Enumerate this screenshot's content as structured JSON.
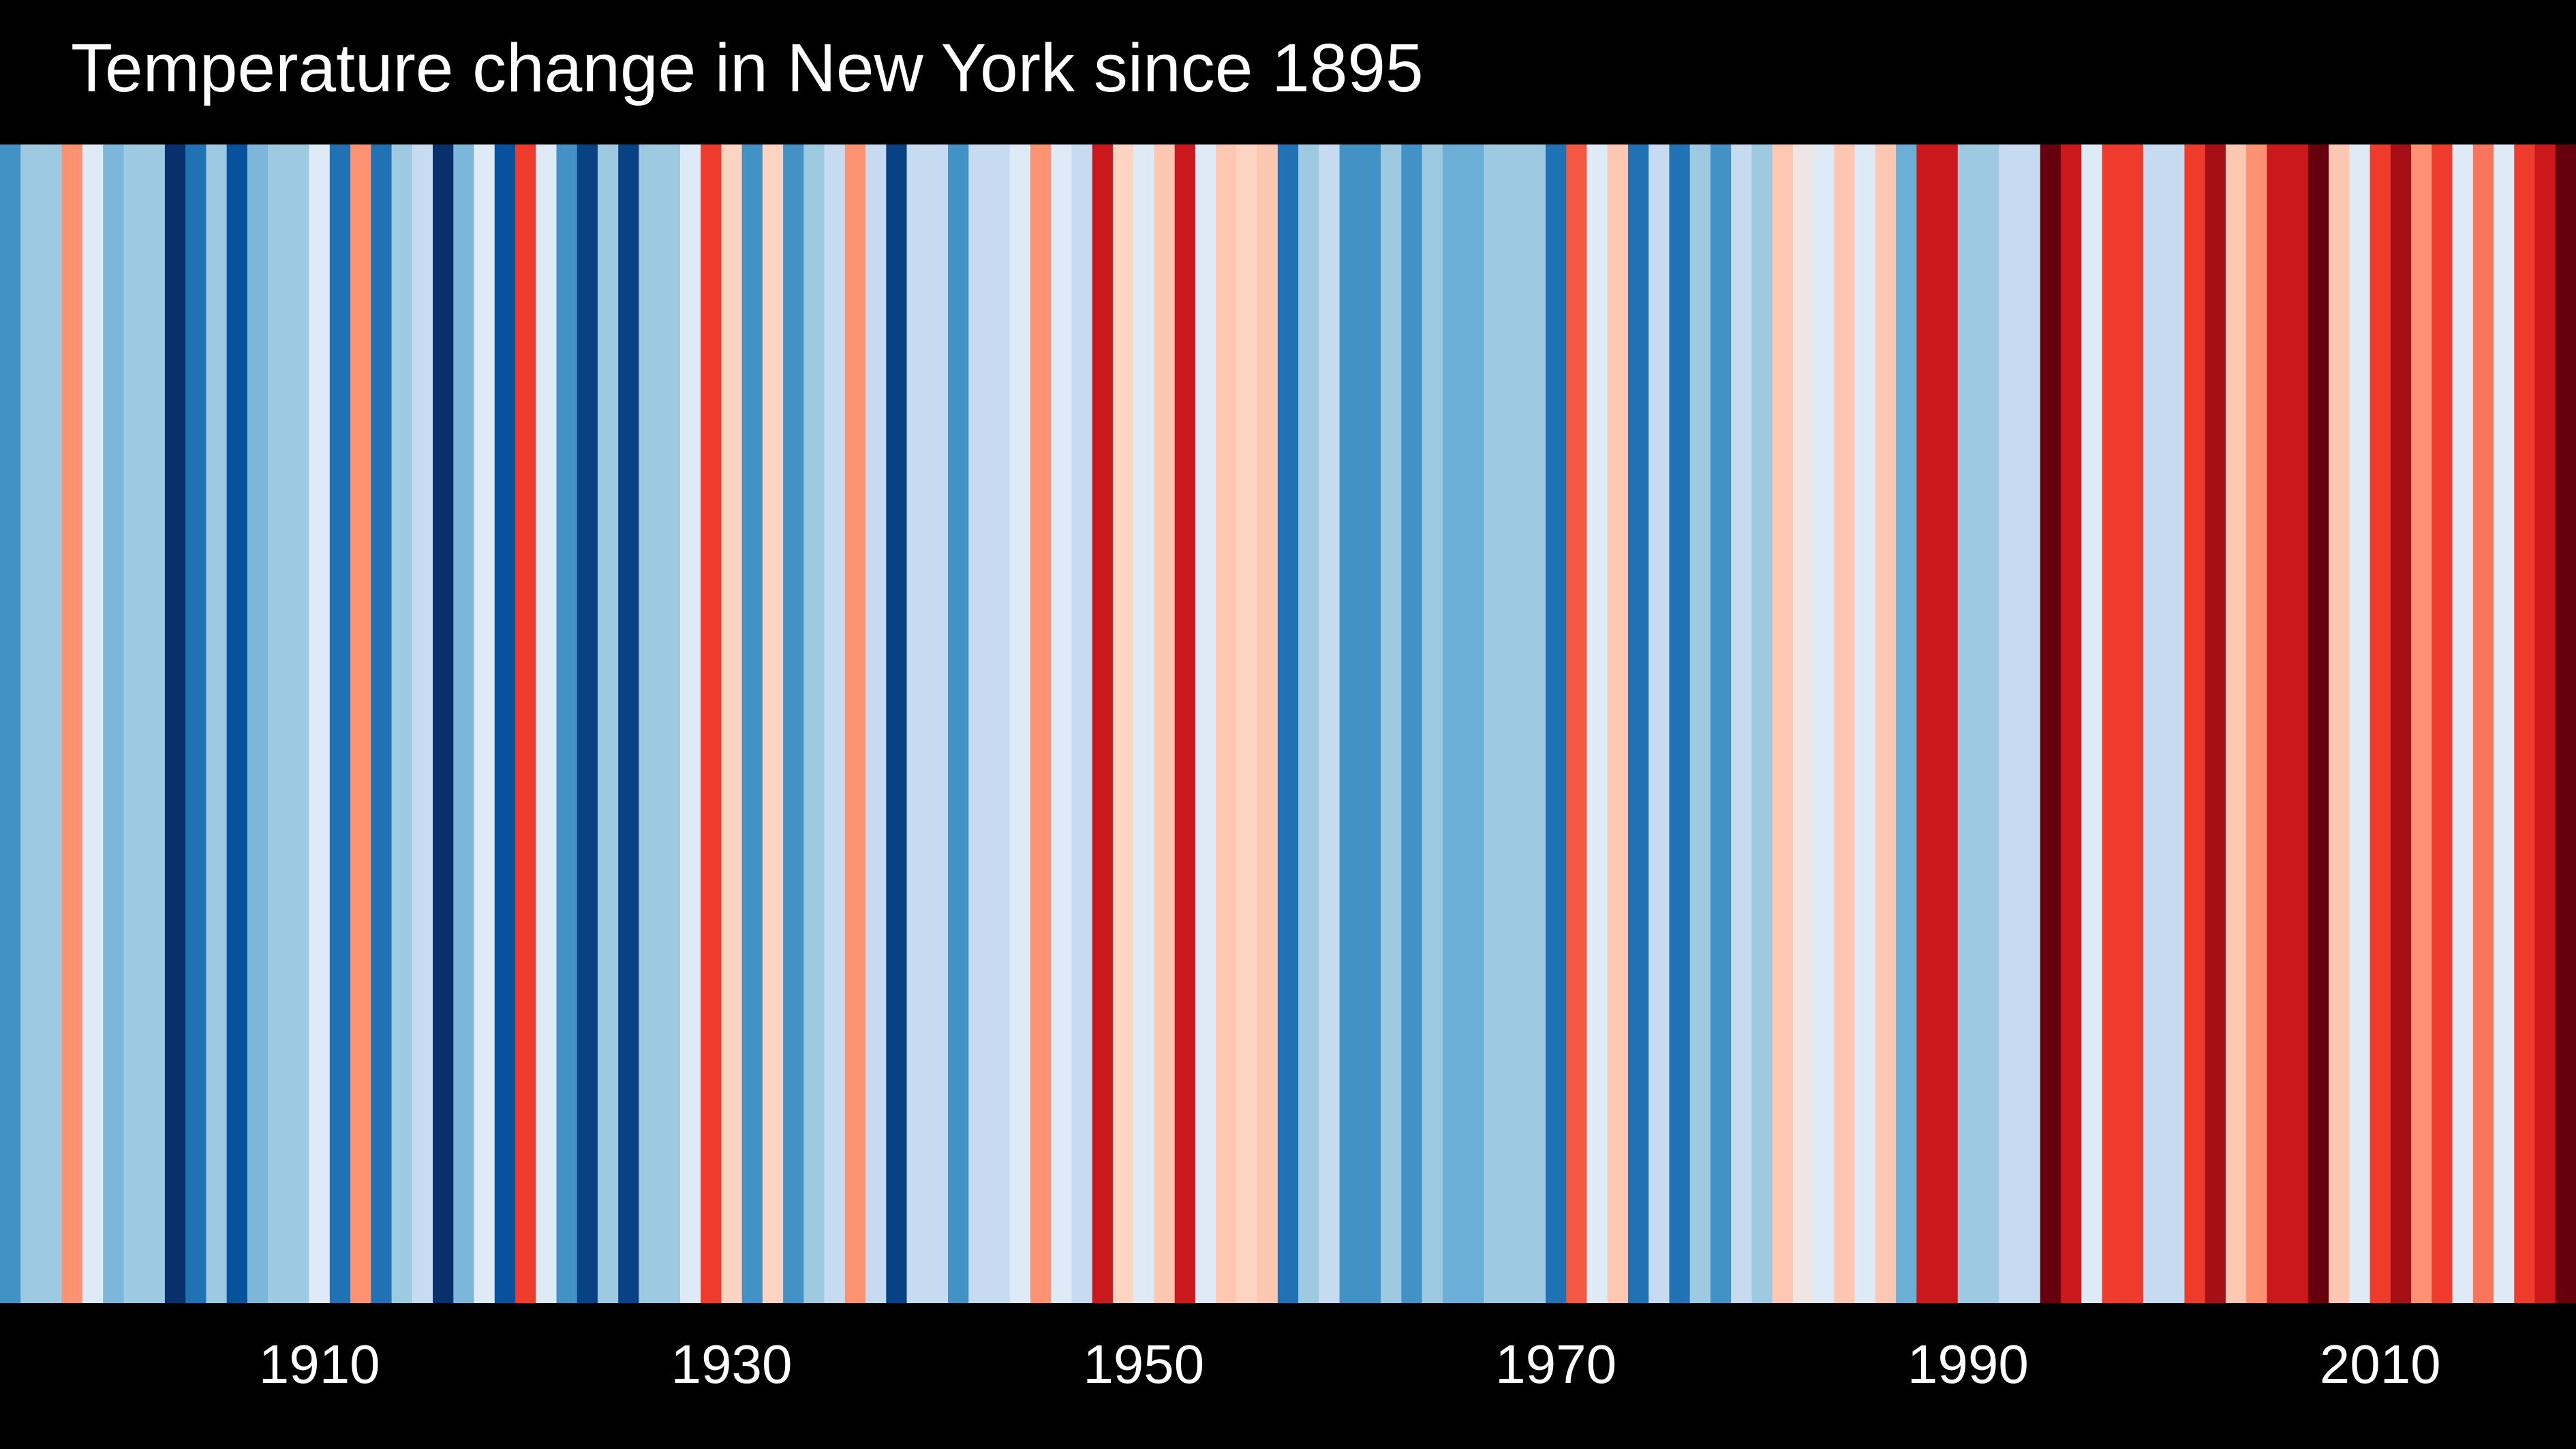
{
  "chart_data": {
    "type": "heatmap",
    "title": "Temperature change in New York since 1895",
    "x_start": 1895,
    "x_end": 2019,
    "x_tick_labels": [
      "1910",
      "1930",
      "1950",
      "1970",
      "1990",
      "2010"
    ],
    "x_ticks": [
      1910,
      1930,
      1950,
      1970,
      1990,
      2010
    ],
    "value_scale": "anomaly level (-1 = coldest blue, 0 = neutral, +1 = warmest red)",
    "years": [
      1895,
      1896,
      1897,
      1898,
      1899,
      1900,
      1901,
      1902,
      1903,
      1904,
      1905,
      1906,
      1907,
      1908,
      1909,
      1910,
      1911,
      1912,
      1913,
      1914,
      1915,
      1916,
      1917,
      1918,
      1919,
      1920,
      1921,
      1922,
      1923,
      1924,
      1925,
      1926,
      1927,
      1928,
      1929,
      1930,
      1931,
      1932,
      1933,
      1934,
      1935,
      1936,
      1937,
      1938,
      1939,
      1940,
      1941,
      1942,
      1943,
      1944,
      1945,
      1946,
      1947,
      1948,
      1949,
      1950,
      1951,
      1952,
      1953,
      1954,
      1955,
      1956,
      1957,
      1958,
      1959,
      1960,
      1961,
      1962,
      1963,
      1964,
      1965,
      1966,
      1967,
      1968,
      1969,
      1970,
      1971,
      1972,
      1973,
      1974,
      1975,
      1976,
      1977,
      1978,
      1979,
      1980,
      1981,
      1982,
      1983,
      1984,
      1985,
      1986,
      1987,
      1988,
      1989,
      1990,
      1991,
      1992,
      1993,
      1994,
      1995,
      1996,
      1997,
      1998,
      1999,
      2000,
      2001,
      2002,
      2003,
      2004,
      2005,
      2006,
      2007,
      2008,
      2009,
      2010,
      2011,
      2012,
      2013,
      2014,
      2015,
      2016,
      2017,
      2018,
      2019
    ],
    "values": [
      -0.5,
      -0.2,
      -0.2,
      0.45,
      0.05,
      -0.3,
      -0.2,
      -0.2,
      -1.0,
      -0.65,
      -0.2,
      -0.8,
      -0.3,
      -0.2,
      -0.2,
      0.05,
      -0.65,
      0.45,
      -0.65,
      -0.2,
      -0.05,
      -1.0,
      -0.3,
      0.05,
      -0.8,
      0.6,
      0.05,
      -0.5,
      -0.9,
      -0.2,
      -0.9,
      -0.2,
      -0.2,
      0.05,
      0.6,
      0.2,
      -0.5,
      0.2,
      -0.5,
      -0.2,
      -0.05,
      0.45,
      -0.05,
      -0.9,
      -0.05,
      -0.05,
      -0.5,
      -0.05,
      -0.05,
      0.05,
      0.45,
      0.05,
      -0.05,
      0.85,
      0.2,
      0.05,
      0.25,
      0.85,
      0.05,
      0.25,
      0.2,
      0.25,
      -0.65,
      -0.2,
      -0.05,
      -0.5,
      -0.5,
      -0.2,
      -0.5,
      -0.2,
      -0.35,
      -0.35,
      -0.2,
      -0.2,
      -0.2,
      -0.65,
      0.55,
      0.05,
      0.25,
      -0.65,
      -0.05,
      -0.65,
      -0.2,
      -0.5,
      -0.05,
      -0.2,
      0.25,
      0.1,
      0.05,
      0.25,
      0.05,
      0.25,
      -0.35,
      0.85,
      0.85,
      -0.2,
      -0.2,
      -0.05,
      -0.05,
      1.0,
      0.85,
      0.05,
      0.6,
      0.6,
      -0.05,
      -0.05,
      0.6,
      0.95,
      0.25,
      0.45,
      0.85,
      0.85,
      1.0,
      0.25,
      0.05,
      0.6,
      0.95,
      0.45,
      0.6,
      0.05,
      0.5,
      0.05,
      0.6,
      0.85,
      1.0
    ]
  }
}
